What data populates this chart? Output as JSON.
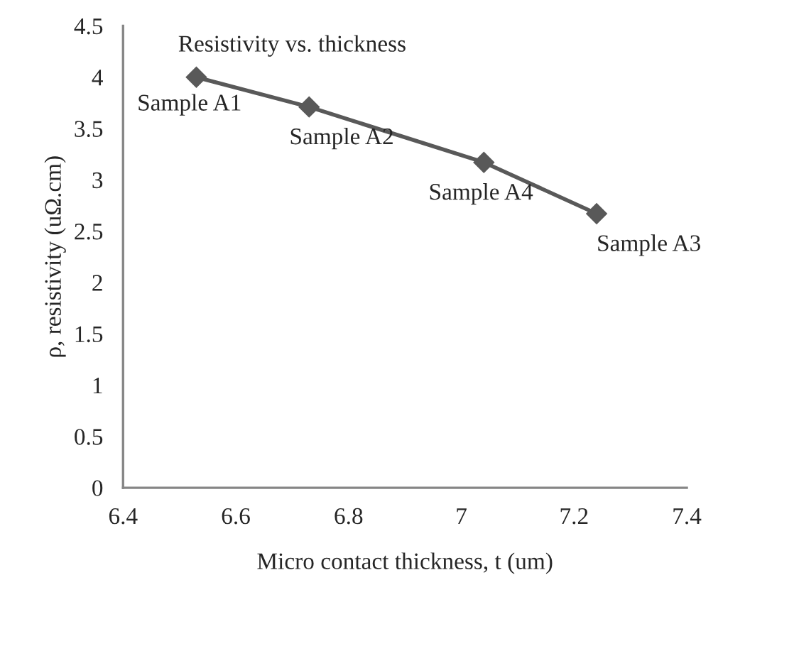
{
  "chart_data": {
    "type": "line",
    "title": "Resistivity vs. thickness",
    "xlabel": "Micro contact thickness, t (um)",
    "ylabel": "ρ, resistivity (uΩ.cm)",
    "series": [
      {
        "color": "#595959",
        "x": [
          6.53,
          6.73,
          7.04,
          7.24
        ],
        "values": [
          4.0,
          3.71,
          3.17,
          2.67
        ]
      }
    ],
    "annotations": [
      {
        "text": "Sample A1",
        "x": 6.53,
        "y": 4.0
      },
      {
        "text": "Sample A2",
        "x": 6.73,
        "y": 3.71
      },
      {
        "text": "Sample A4",
        "x": 7.04,
        "y": 3.17
      },
      {
        "text": "Sample A3",
        "x": 7.24,
        "y": 2.67
      }
    ],
    "xlim": [
      6.4,
      7.4
    ],
    "xticks": [
      6.4,
      6.6,
      6.8,
      7,
      7.2,
      7.4
    ],
    "ylim": [
      0,
      4.5
    ],
    "yticks": [
      0,
      0.5,
      1,
      1.5,
      2,
      2.5,
      3,
      3.5,
      4,
      4.5
    ],
    "marker": "diamond",
    "line_style": "solid",
    "grid": false,
    "legend": false
  }
}
